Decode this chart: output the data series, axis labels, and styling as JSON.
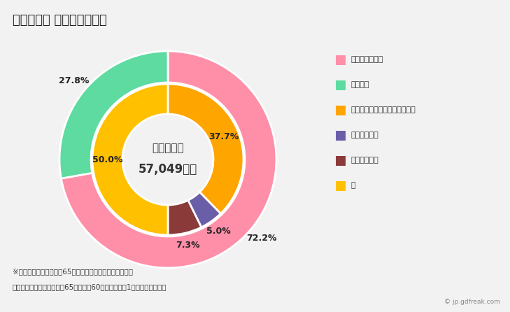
{
  "title": "２０２０年 各務原市の世帯",
  "center_line1": "一般世帯数",
  "center_line2": "57,049世帯",
  "outer_values": [
    72.2,
    27.8
  ],
  "outer_colors": [
    "#FF8FA8",
    "#5DDBA0"
  ],
  "outer_labels": [
    "72.2%",
    "27.8%"
  ],
  "inner_values": [
    37.7,
    5.0,
    7.3,
    50.0
  ],
  "inner_colors": [
    "#FFA500",
    "#6B5EA8",
    "#8B3A3A",
    "#FFC000"
  ],
  "inner_labels": [
    "37.7%",
    "5.0%",
    "7.3%",
    "50.0%"
  ],
  "legend_labels": [
    "二人以上の世帯",
    "単身世帯",
    "高齢単身・高齢夫婦以外の世帯",
    "高齢単身世帯",
    "高齢夫婦世帯",
    "計"
  ],
  "legend_colors": [
    "#FF8FA8",
    "#5DDBA0",
    "#FFA500",
    "#6B5EA8",
    "#8B3A3A",
    "#FFC000"
  ],
  "footer1": "※「高齢単身世帯」とは65歳以上の人一人のみの一般世帯",
  "footer2": "　「高齢夫婦世帯」とは夫65歳以上妻60歳以上の夫婦1組のみの一般世帯",
  "watermark": "© jp.gdfreak.com",
  "bg_color": "#F2F2F2"
}
